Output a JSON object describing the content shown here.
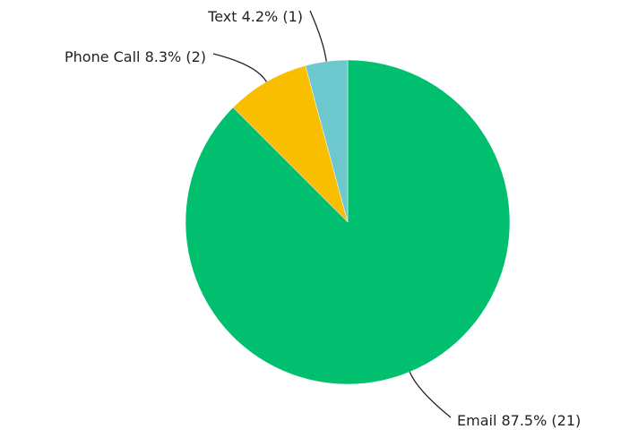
{
  "chart_data": {
    "type": "pie",
    "categories": [
      "Email",
      "Phone Call",
      "Text"
    ],
    "values": [
      87.5,
      8.3,
      4.2
    ],
    "value_labels": [
      "87.5% (21)",
      "8.3% (2)",
      "4.2% (1)"
    ],
    "colors": [
      "#00c06f",
      "#f9be00",
      "#6cc8cc"
    ]
  }
}
